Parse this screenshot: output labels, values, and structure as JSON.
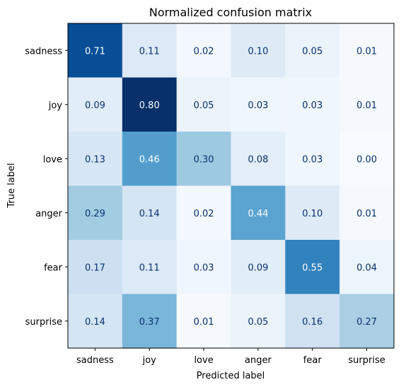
{
  "chart_data": {
    "type": "heatmap",
    "title": "Normalized confusion matrix",
    "xlabel": "Predicted label",
    "ylabel": "True label",
    "x_categories": [
      "sadness",
      "joy",
      "love",
      "anger",
      "fear",
      "surprise"
    ],
    "y_categories": [
      "sadness",
      "joy",
      "love",
      "anger",
      "fear",
      "surprise"
    ],
    "values": [
      [
        0.71,
        0.11,
        0.02,
        0.1,
        0.05,
        0.01
      ],
      [
        0.09,
        0.8,
        0.05,
        0.03,
        0.03,
        0.01
      ],
      [
        0.13,
        0.46,
        0.3,
        0.08,
        0.03,
        0.0
      ],
      [
        0.29,
        0.14,
        0.02,
        0.44,
        0.1,
        0.01
      ],
      [
        0.17,
        0.11,
        0.03,
        0.09,
        0.55,
        0.04
      ],
      [
        0.14,
        0.37,
        0.01,
        0.05,
        0.16,
        0.27
      ]
    ],
    "value_labels": [
      [
        "0.71",
        "0.11",
        "0.02",
        "0.10",
        "0.05",
        "0.01"
      ],
      [
        "0.09",
        "0.80",
        "0.05",
        "0.03",
        "0.03",
        "0.01"
      ],
      [
        "0.13",
        "0.46",
        "0.30",
        "0.08",
        "0.03",
        "0.00"
      ],
      [
        "0.29",
        "0.14",
        "0.02",
        "0.44",
        "0.10",
        "0.01"
      ],
      [
        "0.17",
        "0.11",
        "0.03",
        "0.09",
        "0.55",
        "0.04"
      ],
      [
        "0.14",
        "0.37",
        "0.01",
        "0.05",
        "0.16",
        "0.27"
      ]
    ],
    "colormap": "Blues",
    "grid": false,
    "legend": "none",
    "label_color_dark_bg": "#ffffff",
    "label_color_light_bg": "#08306b"
  }
}
